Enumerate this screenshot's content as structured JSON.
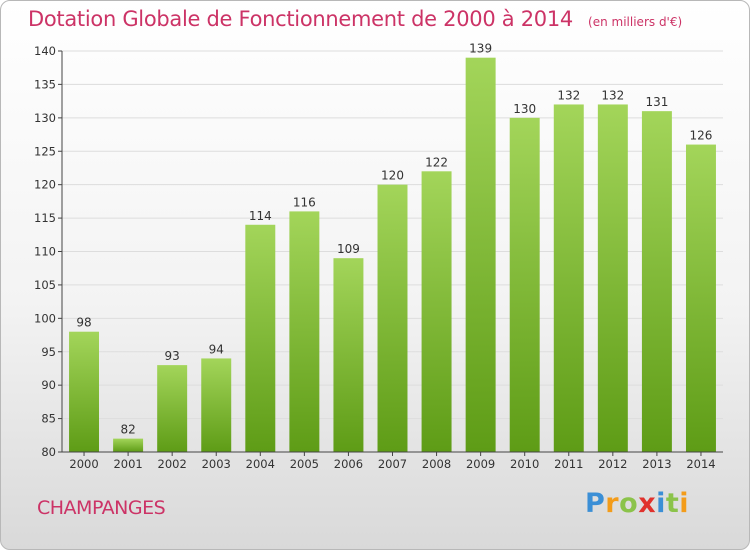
{
  "title": "Dotation Globale de Fonctionnement de 2000 à 2014",
  "subtitle": "(en milliers d'€)",
  "commune": "CHAMPANGES",
  "brand": {
    "letters": [
      "P",
      "r",
      "o",
      "x",
      "i",
      "t",
      "i"
    ],
    "colors": [
      "#3b8fd6",
      "#f39c1a",
      "#8bc34a",
      "#e0322d",
      "#3b8fd6",
      "#8bc34a",
      "#f39c1a"
    ]
  },
  "colors": {
    "bar_light": "#a3d55a",
    "bar_dark": "#5e9c16",
    "title": "#cc3366",
    "grid": "#dddddd",
    "axis": "#444444",
    "label": "#333333"
  },
  "chart_data": {
    "type": "bar",
    "title": "Dotation Globale de Fonctionnement de 2000 à 2014",
    "subtitle": "(en milliers d'€)",
    "xlabel": "",
    "ylabel": "",
    "categories": [
      "2000",
      "2001",
      "2002",
      "2003",
      "2004",
      "2005",
      "2006",
      "2007",
      "2008",
      "2009",
      "2010",
      "2011",
      "2012",
      "2013",
      "2014"
    ],
    "values": [
      98,
      82,
      93,
      94,
      114,
      116,
      109,
      120,
      122,
      139,
      130,
      132,
      132,
      131,
      126
    ],
    "ylim": [
      80,
      140
    ],
    "yticks": [
      80,
      85,
      90,
      95,
      100,
      105,
      110,
      115,
      120,
      125,
      130,
      135,
      140
    ],
    "grid": true,
    "legend": "none"
  }
}
